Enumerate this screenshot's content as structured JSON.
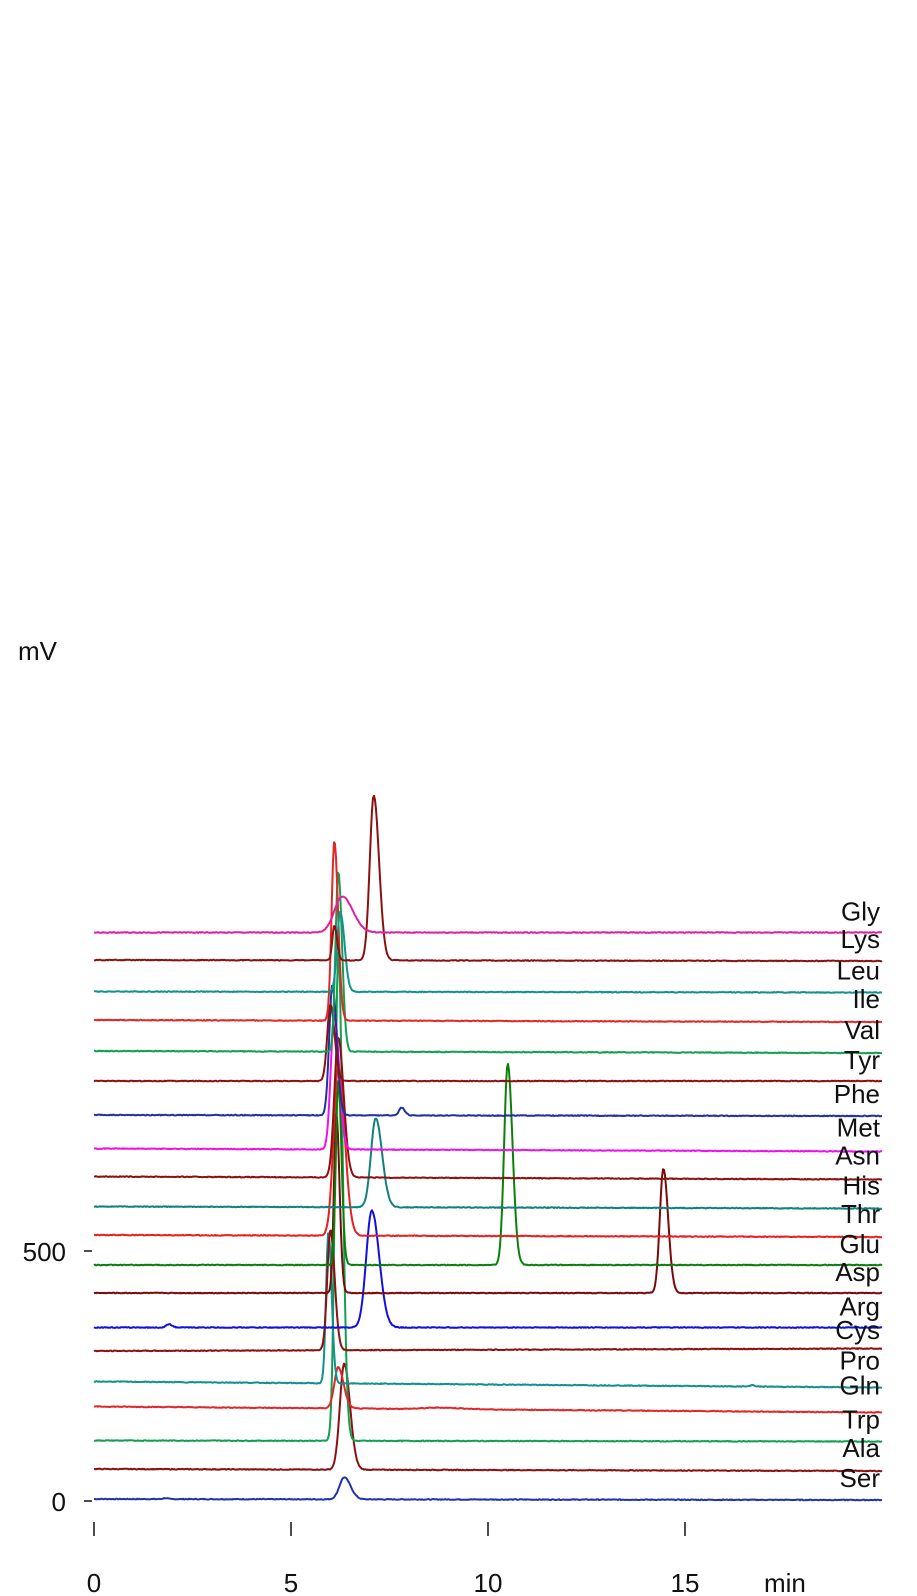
{
  "chart_data": {
    "type": "line",
    "title": "",
    "xlabel": "min",
    "ylabel": "mV",
    "xlim": [
      0,
      20
    ],
    "ylim": [
      0,
      500
    ],
    "x_ticks": [
      0,
      5,
      10,
      15
    ],
    "x_tick_labels": [
      "0",
      "5",
      "10",
      "15"
    ],
    "y_ticks": [
      0,
      500
    ],
    "y_tick_labels": [
      "0",
      "500"
    ],
    "grid": false,
    "legend": "right-labels",
    "series": [
      {
        "name": "Ser",
        "color": "#2233aa",
        "baseline_mV": 0,
        "slope_mV": -2,
        "peaks": [
          {
            "t": 6.35,
            "h": 44,
            "w": 0.12
          },
          {
            "t": 1.8,
            "h": 2,
            "w": 0.05
          }
        ]
      },
      {
        "name": "Ala",
        "color": "#8b1010",
        "baseline_mV": 60,
        "slope_mV": -4,
        "peaks": [
          {
            "t": 6.35,
            "h": 212,
            "w": 0.11
          }
        ]
      },
      {
        "name": "Trp",
        "color": "#12a050",
        "baseline_mV": 117,
        "slope_mV": -2,
        "peaks": [
          {
            "t": 6.2,
            "h": 980,
            "w": 0.08
          }
        ]
      },
      {
        "name": "Gln",
        "color": "#e02828",
        "baseline_mV": 185,
        "slope_mV": -12,
        "peaks": [
          {
            "t": 6.2,
            "h": 82,
            "w": 0.1
          },
          {
            "t": 8.8,
            "h": 3,
            "w": 0.4
          }
        ]
      },
      {
        "name": "Pro",
        "color": "#149090",
        "baseline_mV": 235,
        "slope_mV": -12,
        "peaks": [
          {
            "t": 5.95,
            "h": 305,
            "w": 0.06
          },
          {
            "t": 16.7,
            "h": 3,
            "w": 0.05
          }
        ]
      },
      {
        "name": "Cys",
        "color": "#8b1010",
        "baseline_mV": 296,
        "slope_mV": 5,
        "peaks": [
          {
            "t": 6.0,
            "h": 241,
            "w": 0.08
          }
        ]
      },
      {
        "name": "Arg",
        "color": "#1010e0",
        "baseline_mV": 343,
        "slope_mV": 0,
        "peaks": [
          {
            "t": 7.05,
            "h": 234,
            "w": 0.14
          },
          {
            "t": 1.9,
            "h": 7,
            "w": 0.06
          }
        ]
      },
      {
        "name": "Asp",
        "color": "#7a0a0a",
        "baseline_mV": 412,
        "slope_mV": 0,
        "peaks": [
          {
            "t": 14.45,
            "h": 249,
            "w": 0.09
          },
          {
            "t": 6.15,
            "h": 360,
            "w": 0.06
          }
        ]
      },
      {
        "name": "Glu",
        "color": "#0a800a",
        "baseline_mV": 468,
        "slope_mV": 0,
        "peaks": [
          {
            "t": 10.5,
            "h": 403,
            "w": 0.09
          },
          {
            "t": 6.2,
            "h": 370,
            "w": 0.06
          }
        ]
      },
      {
        "name": "Thr",
        "color": "#e82020",
        "baseline_mV": 528,
        "slope_mV": -4,
        "peaks": [
          {
            "t": 6.2,
            "h": 336,
            "w": 0.12
          }
        ]
      },
      {
        "name": "His",
        "color": "#128080",
        "baseline_mV": 585,
        "slope_mV": -4,
        "peaks": [
          {
            "t": 7.15,
            "h": 178,
            "w": 0.12
          }
        ]
      },
      {
        "name": "Asn",
        "color": "#8b1010",
        "baseline_mV": 645,
        "slope_mV": -6,
        "peaks": [
          {
            "t": 6.2,
            "h": 280,
            "w": 0.1
          }
        ]
      },
      {
        "name": "Met",
        "color": "#ee10ee",
        "baseline_mV": 701,
        "slope_mV": -6,
        "peaks": [
          {
            "t": 6.1,
            "h": 270,
            "w": 0.09
          }
        ]
      },
      {
        "name": "Phe",
        "color": "#2030a0",
        "baseline_mV": 768,
        "slope_mV": -2,
        "peaks": [
          {
            "t": 6.05,
            "h": 260,
            "w": 0.08
          },
          {
            "t": 7.8,
            "h": 16,
            "w": 0.06
          }
        ]
      },
      {
        "name": "Tyr",
        "color": "#8b1010",
        "baseline_mV": 836,
        "slope_mV": 0,
        "peaks": [
          {
            "t": 6.0,
            "h": 152,
            "w": 0.08
          }
        ]
      },
      {
        "name": "Val",
        "color": "#12a050",
        "baseline_mV": 896,
        "slope_mV": -4,
        "peaks": [
          {
            "t": 6.2,
            "h": 360,
            "w": 0.07
          }
        ]
      },
      {
        "name": "Ile",
        "color": "#e02828",
        "baseline_mV": 958,
        "slope_mV": -4,
        "peaks": [
          {
            "t": 6.1,
            "h": 360,
            "w": 0.07
          }
        ]
      },
      {
        "name": "Leu",
        "color": "#149090",
        "baseline_mV": 1015,
        "slope_mV": -2,
        "peaks": [
          {
            "t": 6.25,
            "h": 160,
            "w": 0.08
          }
        ]
      },
      {
        "name": "Lys",
        "color": "#8b1010",
        "baseline_mV": 1078,
        "slope_mV": -2,
        "peaks": [
          {
            "t": 7.1,
            "h": 330,
            "w": 0.1
          },
          {
            "t": 6.1,
            "h": 70,
            "w": 0.05
          }
        ]
      },
      {
        "name": "Gly",
        "color": "#e0209a",
        "baseline_mV": 1133,
        "slope_mV": 0,
        "peaks": [
          {
            "t": 6.3,
            "h": 72,
            "w": 0.2
          }
        ]
      }
    ]
  }
}
